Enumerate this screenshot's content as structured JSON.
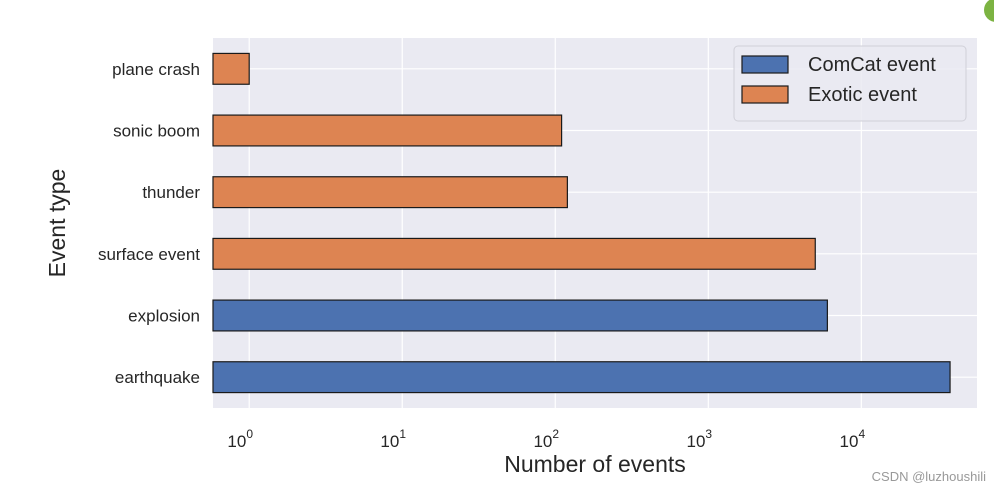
{
  "chart_data": {
    "type": "bar",
    "orientation": "horizontal",
    "xscale": "log",
    "categories": [
      "earthquake",
      "explosion",
      "surface event",
      "thunder",
      "sonic boom",
      "plane crash"
    ],
    "values": [
      38000,
      6000,
      5000,
      120,
      110,
      1
    ],
    "groups": [
      "ComCat event",
      "ComCat event",
      "Exotic event",
      "Exotic event",
      "Exotic event",
      "Exotic event"
    ],
    "xlabel": "Number of events",
    "ylabel": "Event type",
    "xlim": [
      0.58,
      57000
    ],
    "xticks": [
      1,
      10,
      100,
      1000,
      10000
    ],
    "xtick_labels": [
      {
        "base": "10",
        "exp": "0"
      },
      {
        "base": "10",
        "exp": "1"
      },
      {
        "base": "10",
        "exp": "2"
      },
      {
        "base": "10",
        "exp": "3"
      },
      {
        "base": "10",
        "exp": "4"
      }
    ],
    "grid": true,
    "legend": {
      "placement": "top-right",
      "entries": [
        {
          "label": "ComCat event",
          "color": "#4c72b0"
        },
        {
          "label": "Exotic event",
          "color": "#dd8452"
        }
      ]
    }
  },
  "watermark": "CSDN @luzhoushili"
}
